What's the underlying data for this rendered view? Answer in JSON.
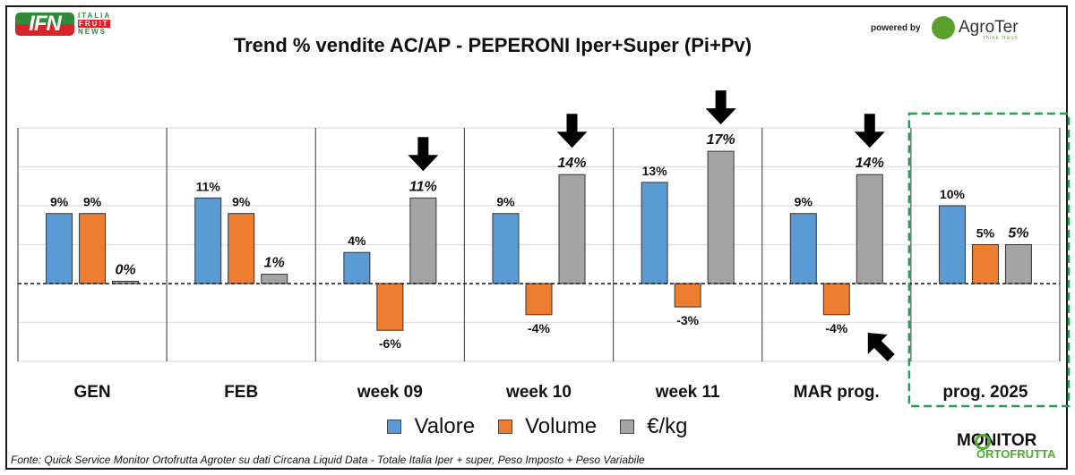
{
  "header": {
    "logo_left": {
      "badge": "IFN",
      "line1": "ITALIA",
      "line2": "FRUIT",
      "line3": "NEWS"
    },
    "powered_by": "powered by",
    "logo_right": {
      "name": "AgroTer",
      "tagline": "think fresh"
    }
  },
  "footer": {
    "source": "Fonte: Quick Service Monitor Ortofrutta Agroter su dati Circana Liquid Data - Totale Italia Iper + super, Peso Imposto + Peso Variabile",
    "brand_line1": "MONITOR",
    "brand_line2": "ORTOFRUTTA"
  },
  "colors": {
    "valore": "#5b9bd5",
    "volume": "#ed7d31",
    "prezzo": "#a5a5a5",
    "highlight_box": "#1fa34a"
  },
  "chart_data": {
    "type": "bar",
    "title": "Trend % vendite AC/AP - PEPERONI  Iper+Super (Pi+Pv)",
    "xlabel": "",
    "ylabel": "",
    "ylim": [
      -10,
      20
    ],
    "grid": true,
    "gridlines": [
      -10,
      -5,
      0,
      5,
      10,
      15,
      20
    ],
    "categories": [
      "GEN",
      "FEB",
      "week 09",
      "week 10",
      "week 11",
      "MAR prog.",
      "prog. 2025"
    ],
    "series": [
      {
        "name": "Valore",
        "values": [
          9,
          11,
          4,
          9,
          13,
          9,
          10
        ],
        "labels": [
          "9%",
          "11%",
          "4%",
          "9%",
          "13%",
          "9%",
          "10%"
        ]
      },
      {
        "name": "Volume",
        "values": [
          9,
          9,
          -6,
          -4,
          -3,
          -4,
          5
        ],
        "labels": [
          "9%",
          "9%",
          "-6%",
          "-4%",
          "-3%",
          "-4%",
          "5%"
        ]
      },
      {
        "name": "€/kg",
        "values": [
          0.3,
          1.2,
          11,
          14,
          17,
          14,
          5
        ],
        "labels": [
          "0%",
          "1%",
          "11%",
          "14%",
          "17%",
          "14%",
          "5%"
        ]
      }
    ],
    "legend": {
      "position": "bottom",
      "entries": [
        "Valore",
        "Volume",
        "€/kg"
      ]
    },
    "annotations": [
      {
        "type": "arrow-down",
        "category": "week 09",
        "series": "€/kg"
      },
      {
        "type": "arrow-down",
        "category": "week 10",
        "series": "€/kg"
      },
      {
        "type": "arrow-down",
        "category": "week 11",
        "series": "€/kg"
      },
      {
        "type": "arrow-down",
        "category": "MAR prog.",
        "series": "€/kg"
      },
      {
        "type": "arrow-up-left",
        "category": "MAR prog.",
        "series": "Volume"
      },
      {
        "type": "highlight-box",
        "category": "prog. 2025"
      }
    ]
  }
}
